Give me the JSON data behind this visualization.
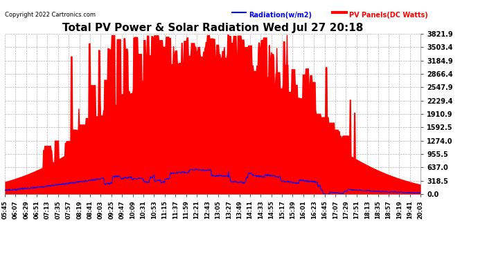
{
  "title": "Total PV Power & Solar Radiation Wed Jul 27 20:18",
  "copyright": "Copyright 2022 Cartronics.com",
  "legend_radiation": "Radiation(w/m2)",
  "legend_pv": "PV Panels(DC Watts)",
  "yticks": [
    0.0,
    318.5,
    637.0,
    955.5,
    1274.0,
    1592.5,
    1910.9,
    2229.4,
    2547.9,
    2866.4,
    3184.9,
    3503.4,
    3821.9
  ],
  "ylim": [
    0.0,
    3821.9
  ],
  "bg_color": "#ffffff",
  "grid_color": "#aaaaaa",
  "fill_color": "#ff0000",
  "line_color": "#0000ff",
  "x_labels": [
    "05:45",
    "06:07",
    "06:29",
    "06:51",
    "07:13",
    "07:35",
    "07:57",
    "08:19",
    "08:41",
    "09:03",
    "09:25",
    "09:47",
    "10:09",
    "10:31",
    "10:53",
    "11:15",
    "11:37",
    "11:59",
    "12:21",
    "12:43",
    "13:05",
    "13:27",
    "13:49",
    "14:11",
    "14:33",
    "14:55",
    "15:17",
    "15:39",
    "16:01",
    "16:23",
    "16:45",
    "17:07",
    "17:29",
    "17:51",
    "18:13",
    "18:35",
    "18:57",
    "19:19",
    "19:41",
    "20:03"
  ],
  "n_labels": 40,
  "pv_max": 3821.9,
  "rad_max_scaled": 637.0,
  "title_fontsize": 11,
  "tick_fontsize": 6,
  "ytick_fontsize": 7,
  "legend_fontsize": 7,
  "copyright_fontsize": 6
}
